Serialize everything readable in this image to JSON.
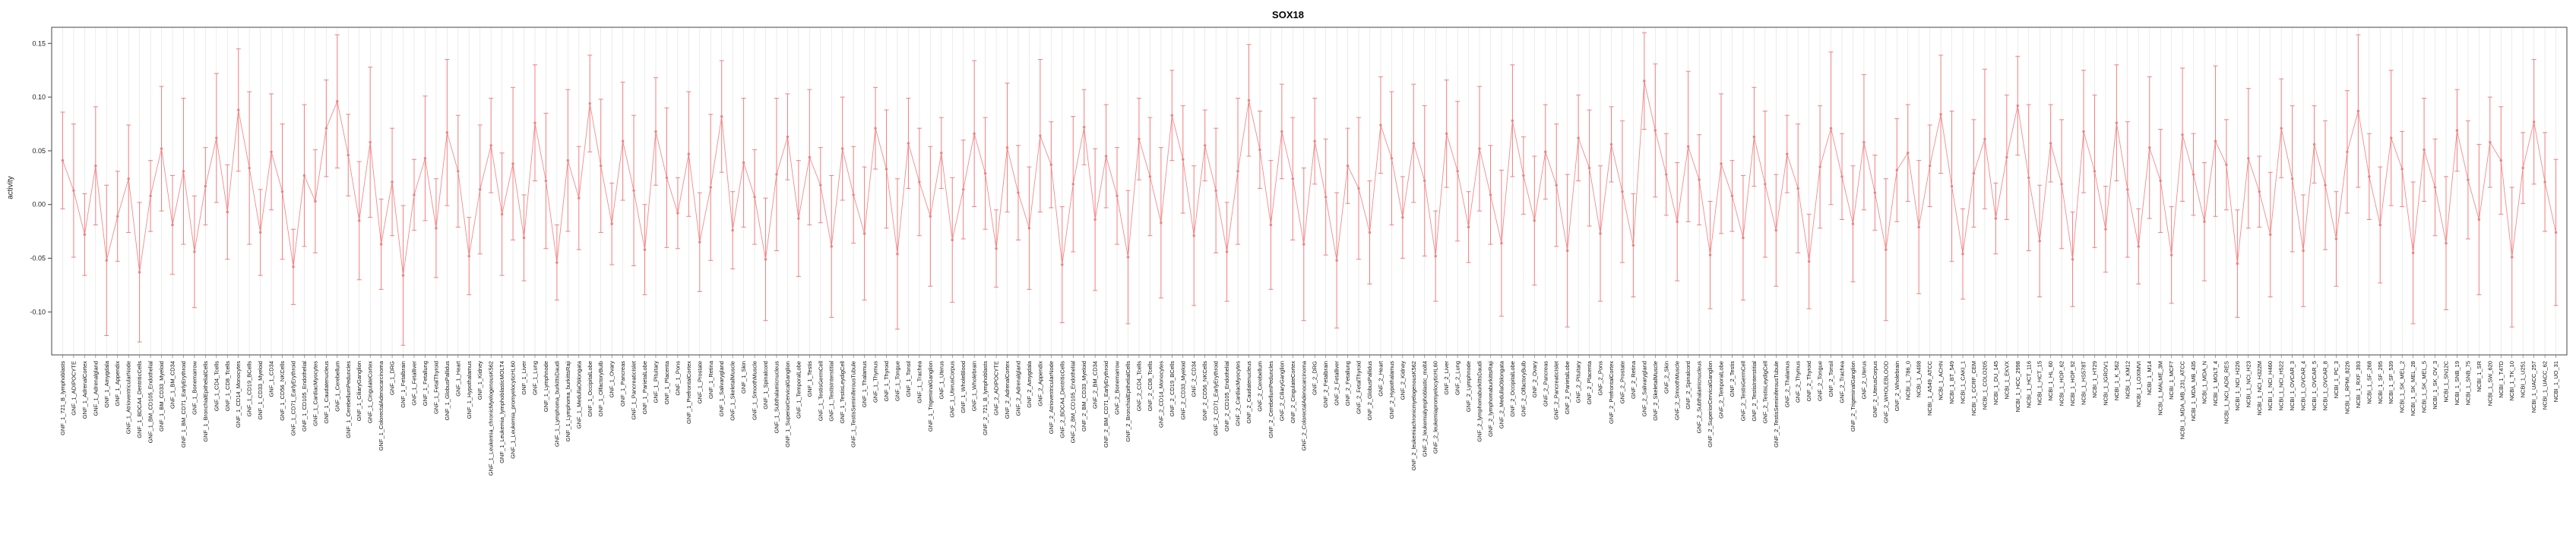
{
  "chart_data": {
    "type": "line",
    "title": "SOX18",
    "ylabel": "activity",
    "xlabel": "",
    "ylim": [
      -0.14,
      0.165
    ],
    "yticks": [
      0.15,
      0.1,
      0.05,
      0.0,
      -0.05,
      -0.1
    ],
    "grid": "vertical-light",
    "grid_color": "#e0e0e0",
    "series_color": "#f08080",
    "error_bars": true,
    "legend": "none",
    "categories": [
      "GNF_1_721_B_lymphoblasts",
      "GNF_1_ADIPOCYTE",
      "GNF_1_AdrenalCortex",
      "GNF_1_Adrenalgland",
      "GNF_1_Amygdala",
      "GNF_1_Appendix",
      "GNF_1_AtrioventricularNode",
      "GNF_1_BDCA4_DentriticCells",
      "GNF_1_BM_CD105_Endothelial",
      "GNF_1_BM_CD33_Myeloid",
      "GNF_1_BM_CD34",
      "GNF_1_BM_CD71_EarlyErythroid",
      "GNF_1_Bonemarrow",
      "GNF_1_BronchialEpithelialCells",
      "GNF_1_CD4_Tcells",
      "GNF_1_CD8_Tcells",
      "GNF_1_CD14_Monocytes",
      "GNF_1_CD19_BCells",
      "GNF_1_CD33_Myeloid",
      "GNF_1_CD34",
      "GNF_1_CD56_NKCells",
      "GNF_1_CD71_EarlyErythroid",
      "GNF_1_CD105_Endothelial",
      "GNF_1_CardiacMyocytes",
      "GNF_1_Caudatenucleus",
      "GNF_1_Cerebellum",
      "GNF_1_CerebellumPeduncles",
      "GNF_1_CiliaryGanglion",
      "GNF_1_CingulateCortex",
      "GNF_1_ColorectalAdenocarcinoma",
      "GNF_1_DRG",
      "GNF_1_Fetalbrain",
      "GNF_1_Fetalliver",
      "GNF_1_Fetallung",
      "GNF_1_FetalThyroid",
      "GNF_1_GlobusPallidus",
      "GNF_1_Heart",
      "GNF_1_Hypothalamus",
      "GNF_1_Kidney",
      "GNF_1_Leukemia_chronicMyelogenousK562",
      "GNF_1_Leukemia_lymphoblasticMOLT4",
      "GNF_1_Leukemia_promyelocyticHL60",
      "GNF_1_Liver",
      "GNF_1_Lung",
      "GNF_1_Lymphnode",
      "GNF_1_Lymphoma_burkittsDaudi",
      "GNF_1_Lymphoma_burkittsRaji",
      "GNF_1_MedullaOblongata",
      "GNF_1_OccipitalLobe",
      "GNF_1_OlfactoryBulb",
      "GNF_1_Ovary",
      "GNF_1_Pancreas",
      "GNF_1_PancreaticIslet",
      "GNF_1_ParietalLobe",
      "GNF_1_Pituitary",
      "GNF_1_Placenta",
      "GNF_1_Pons",
      "GNF_1_PrefrontalCortex",
      "GNF_1_Prostate",
      "GNF_1_Retina",
      "GNF_1_Salivarygland",
      "GNF_1_SkeletalMuscle",
      "GNF_1_Skin",
      "GNF_1_SmoothMuscle",
      "GNF_1_Spinalcord",
      "GNF_1_Subthalamicnucleus",
      "GNF_1_SuperiorCervicalGanglion",
      "GNF_1_TemporalLobe",
      "GNF_1_Testis",
      "GNF_1_TestisGermCell",
      "GNF_1_TestisInterstitial",
      "GNF_1_TestisLeydigCell",
      "GNF_1_TestisSeminiferousTubule",
      "GNF_1_Thalamus",
      "GNF_1_Thymus",
      "GNF_1_Thyroid",
      "GNF_1_Tongue",
      "GNF_1_Tonsil",
      "GNF_1_Trachea",
      "GNF_1_TrigeminalGanglion",
      "GNF_1_Uterus",
      "GNF_1_UterusCorpus",
      "GNF_1_WholeBlood",
      "GNF_1_Wholebrain",
      "GNF_2_721_B_lymphoblasts",
      "GNF_2_ADIPOCYTE",
      "GNF_2_AdrenalCortex",
      "GNF_2_Adrenalgland",
      "GNF_2_Amygdala",
      "GNF_2_Appendix",
      "GNF_2_AtrioventricularNode",
      "GNF_2_BDCA4_DentriticCells",
      "GNF_2_BM_CD105_Endothelial",
      "GNF_2_BM_CD33_Myeloid",
      "GNF_2_BM_CD34",
      "GNF_2_BM_CD71_EarlyErythroid",
      "GNF_2_Bonemarrow",
      "GNF_2_BronchialEpithelialCells",
      "GNF_2_CD4_Tcells",
      "GNF_2_CD8_Tcells",
      "GNF_2_CD14_Monocytes",
      "GNF_2_CD19_BCells",
      "GNF_2_CD33_Myeloid",
      "GNF_2_CD34",
      "GNF_2_CD56_NKCells",
      "GNF_2_CD71_EarlyErythroid",
      "GNF_2_CD105_Endothelial",
      "GNF_2_CardiacMyocytes",
      "GNF_2_Caudatenucleus",
      "GNF_2_Cerebellum",
      "GNF_2_CerebellumPeduncles",
      "GNF_2_CiliaryGanglion",
      "GNF_2_CingulateCortex",
      "GNF_2_ColorectalAdenocarcinoma",
      "GNF_2_DRG",
      "GNF_2_Fetalbrain",
      "GNF_2_Fetalliver",
      "GNF_2_Fetallung",
      "GNF_2_FetalThyroid",
      "GNF_2_GlobusPallidus",
      "GNF_2_Heart",
      "GNF_2_Hypothalamus",
      "GNF_2_Kidney",
      "GNF_2_leukemiachronicmyelogenousK562",
      "GNF_2_leukemialymphoblastic_molt4",
      "GNF_2_leukemiapromyelocyticHL60",
      "GNF_2_Liver",
      "GNF_2_Lung",
      "GNF_2_Lymphnode",
      "GNF_2_lymphomaburkittsDaudi",
      "GNF_2_lymphomaburkittsRaji",
      "GNF_2_MedullaOblongata",
      "GNF_2_OccipitalLobe",
      "GNF_2_OlfactoryBulb",
      "GNF_2_Ovary",
      "GNF_2_Pancreas",
      "GNF_2_PancreaticIslet",
      "GNF_2_ParietalLobe",
      "GNF_2_Pituitary",
      "GNF_2_Placenta",
      "GNF_2_Pons",
      "GNF_2_PrefrontalCortex",
      "GNF_2_Prostate",
      "GNF_2_Retina",
      "GNF_2_Salivarygland",
      "GNF_2_SkeletalMuscle",
      "GNF_2_Skin",
      "GNF_2_SmoothMuscle",
      "GNF_2_Spinalcord",
      "GNF_2_Subthalamicnucleus",
      "GNF_2_SuperiorCervicalGanglion",
      "GNF_2_TemporalLobe",
      "GNF_2_Testis",
      "GNF_2_TestisGermCell",
      "GNF_2_TestisInterstitial",
      "GNF_2_TestisLeydigCell",
      "GNF_2_TestisSeminiferousTubule",
      "GNF_2_Thalamus",
      "GNF_2_Thymus",
      "GNF_2_Thyroid",
      "GNF_2_Tongue",
      "GNF_2_Tonsil",
      "GNF_2_Trachea",
      "GNF_2_TrigeminalGanglion",
      "GNF_2_Uterus",
      "GNF_2_UterusCorpus",
      "GNF_2_WHOLEBLOOD",
      "GNF_2_Wholebrain",
      "NCBI_1_786_0",
      "NCBI_1_A498",
      "NCBI_1_A549_ATCC",
      "NCBI_1_ACHN",
      "NCBI_1_BT_549",
      "NCBI_1_CAKI_1",
      "NCBI_1_CCRF_CEM",
      "NCBI_1_COLO205",
      "NCBI_1_DU_145",
      "NCBI_1_EKVX",
      "NCBI_1_HCC_2998",
      "NCBI_1_HCT_116",
      "NCBI_1_HCT_15",
      "NCBI_1_HL_60",
      "NCBI_1_HOP_62",
      "NCBI_1_HOP_92",
      "NCBI_1_HS578T",
      "NCBI_1_HT29",
      "NCBI_1_IGROV1",
      "NCBI_1_K_562",
      "NCBI_1_KM12",
      "NCBI_1_LOXIMVI",
      "NCBI_1_M14",
      "NCBI_1_MALME_3M",
      "NCBI_1_MCF7",
      "NCBI_1_MDA_MB_231_ATCC",
      "NCBI_1_MDA_MB_435",
      "NCBI_1_MDA_N",
      "NCBI_1_MOLT_4",
      "NCBI_1_NCI_ADR_RES",
      "NCBI_1_NCI_H226",
      "NCBI_1_NCI_H23",
      "NCBI_1_NCI_H322M",
      "NCBI_1_NCI_H460",
      "NCBI_1_NCI_H522",
      "NCBI_1_OVCAR_3",
      "NCBI_1_OVCAR_4",
      "NCBI_1_OVCAR_5",
      "NCBI_1_OVCAR_8",
      "NCBI_1_PC_3",
      "NCBI_1_RPMI_8226",
      "NCBI_1_RXF_393",
      "NCBI_1_SF_268",
      "NCBI_1_SF_295",
      "NCBI_1_SF_539",
      "NCBI_1_SK_MEL_2",
      "NCBI_1_SK_MEL_28",
      "NCBI_1_SK_MEL_5",
      "NCBI_1_SK_OV_3",
      "NCBI_1_SN12C",
      "NCBI_1_SNB_19",
      "NCBI_1_SNB_75",
      "NCBI_1_SR",
      "NCBI_1_SW_620",
      "NCBI_1_T47D",
      "NCBI_1_TK_10",
      "NCBI_1_U251",
      "NCBI_1_UACC_257",
      "NCBI_1_UACC_62",
      "NCBI_1_UO_31"
    ],
    "values": [
      0.041,
      0.013,
      -0.028,
      0.036,
      -0.052,
      -0.011,
      0.024,
      -0.063,
      0.008,
      0.052,
      -0.019,
      0.031,
      -0.044,
      0.017,
      0.062,
      -0.007,
      0.088,
      0.034,
      -0.026,
      0.049,
      0.012,
      -0.058,
      0.027,
      0.003,
      0.071,
      0.096,
      0.046,
      -0.015,
      0.058,
      -0.037,
      0.021,
      -0.066,
      0.009,
      0.043,
      -0.022,
      0.067,
      0.031,
      -0.048,
      0.014,
      0.055,
      -0.009,
      0.038,
      -0.031,
      0.076,
      0.022,
      -0.054,
      0.041,
      0.006,
      0.094,
      0.036,
      -0.018,
      0.059,
      0.013,
      -0.042,
      0.068,
      0.025,
      -0.008,
      0.047,
      -0.035,
      0.016,
      0.082,
      -0.024,
      0.039,
      0.007,
      -0.051,
      0.028,
      0.063,
      -0.013,
      0.044,
      0.018,
      -0.039,
      0.052,
      0.009,
      -0.027,
      0.071,
      0.033,
      -0.046,
      0.057,
      0.021,
      -0.011,
      0.048,
      -0.033,
      0.014,
      0.066,
      0.029,
      -0.041,
      0.053,
      0.011,
      -0.022,
      0.064,
      0.037,
      -0.056,
      0.019,
      0.072,
      -0.014,
      0.045,
      0.008,
      -0.049,
      0.061,
      0.026,
      -0.017,
      0.083,
      0.042,
      -0.029,
      0.055,
      0.013,
      -0.044,
      0.031,
      0.097,
      0.051,
      -0.019,
      0.068,
      0.024,
      -0.037,
      0.059,
      0.007,
      -0.052,
      0.036,
      0.015,
      -0.026,
      0.074,
      0.043,
      -0.012,
      0.057,
      0.022,
      -0.048,
      0.066,
      0.031,
      -0.021,
      0.052,
      0.009,
      -0.036,
      0.078,
      0.027,
      -0.015,
      0.049,
      0.018,
      -0.043,
      0.062,
      0.034,
      -0.027,
      0.056,
      0.012,
      -0.038,
      0.115,
      0.069,
      0.028,
      -0.016,
      0.054,
      0.023,
      -0.047,
      0.038,
      0.008,
      -0.031,
      0.063,
      0.019,
      -0.024,
      0.047,
      0.015,
      -0.053,
      0.035,
      0.071,
      0.026,
      -0.018,
      0.058,
      0.011,
      -0.042,
      0.032,
      0.048,
      -0.021,
      0.036,
      0.084,
      0.017,
      -0.046,
      0.029,
      0.061,
      -0.013,
      0.044,
      0.092,
      0.025,
      -0.034,
      0.057,
      0.019,
      -0.051,
      0.068,
      0.031,
      -0.023,
      0.076,
      0.014,
      -0.039,
      0.053,
      0.022,
      -0.047,
      0.065,
      0.028,
      -0.016,
      0.059,
      0.037,
      -0.055,
      0.043,
      0.012,
      -0.028,
      0.071,
      0.024,
      -0.043,
      0.056,
      0.018,
      -0.032,
      0.049,
      0.087,
      0.026,
      -0.019,
      0.062,
      0.033,
      -0.045,
      0.051,
      0.016,
      -0.036,
      0.069,
      0.023,
      -0.014,
      0.058,
      0.041,
      -0.049,
      0.034,
      0.077,
      0.021,
      -0.026
    ],
    "errors": [
      0.045,
      0.062,
      0.038,
      0.055,
      0.07,
      0.042,
      0.05,
      0.065,
      0.033,
      0.058,
      0.046,
      0.068,
      0.052,
      0.036,
      0.06,
      0.044,
      0.057,
      0.071,
      0.04,
      0.054,
      0.063,
      0.035,
      0.066,
      0.048,
      0.045,
      0.062,
      0.038,
      0.055,
      0.07,
      0.042,
      0.05,
      0.065,
      0.033,
      0.058,
      0.046,
      0.068,
      0.052,
      0.036,
      0.06,
      0.044,
      0.057,
      0.071,
      0.04,
      0.054,
      0.063,
      0.035,
      0.066,
      0.048,
      0.045,
      0.062,
      0.038,
      0.055,
      0.07,
      0.042,
      0.05,
      0.065,
      0.033,
      0.058,
      0.046,
      0.068,
      0.052,
      0.036,
      0.06,
      0.044,
      0.057,
      0.071,
      0.04,
      0.054,
      0.063,
      0.035,
      0.066,
      0.048,
      0.045,
      0.062,
      0.038,
      0.055,
      0.07,
      0.042,
      0.05,
      0.065,
      0.033,
      0.058,
      0.046,
      0.068,
      0.052,
      0.036,
      0.06,
      0.044,
      0.057,
      0.071,
      0.04,
      0.054,
      0.063,
      0.035,
      0.066,
      0.048,
      0.045,
      0.062,
      0.038,
      0.055,
      0.07,
      0.042,
      0.05,
      0.065,
      0.033,
      0.058,
      0.046,
      0.068,
      0.052,
      0.036,
      0.06,
      0.044,
      0.057,
      0.071,
      0.04,
      0.054,
      0.063,
      0.035,
      0.066,
      0.048,
      0.045,
      0.062,
      0.038,
      0.055,
      0.07,
      0.042,
      0.05,
      0.065,
      0.033,
      0.058,
      0.046,
      0.068,
      0.052,
      0.036,
      0.06,
      0.044,
      0.057,
      0.071,
      0.04,
      0.054,
      0.063,
      0.035,
      0.066,
      0.048,
      0.045,
      0.062,
      0.038,
      0.055,
      0.07,
      0.042,
      0.05,
      0.065,
      0.033,
      0.058,
      0.046,
      0.068,
      0.052,
      0.036,
      0.06,
      0.044,
      0.057,
      0.071,
      0.04,
      0.054,
      0.063,
      0.035,
      0.066,
      0.048,
      0.045,
      0.062,
      0.038,
      0.055,
      0.07,
      0.042,
      0.05,
      0.065,
      0.033,
      0.058,
      0.046,
      0.068,
      0.052,
      0.036,
      0.06,
      0.044,
      0.057,
      0.071,
      0.04,
      0.054,
      0.063,
      0.035,
      0.066,
      0.048,
      0.045,
      0.062,
      0.038,
      0.055,
      0.07,
      0.042,
      0.05,
      0.065,
      0.033,
      0.058,
      0.046,
      0.068,
      0.052,
      0.036,
      0.06,
      0.044,
      0.057,
      0.071,
      0.04,
      0.054,
      0.063,
      0.035,
      0.066,
      0.048,
      0.045,
      0.062,
      0.038,
      0.055,
      0.07,
      0.042,
      0.05,
      0.065,
      0.033,
      0.058,
      0.046,
      0.068
    ]
  }
}
